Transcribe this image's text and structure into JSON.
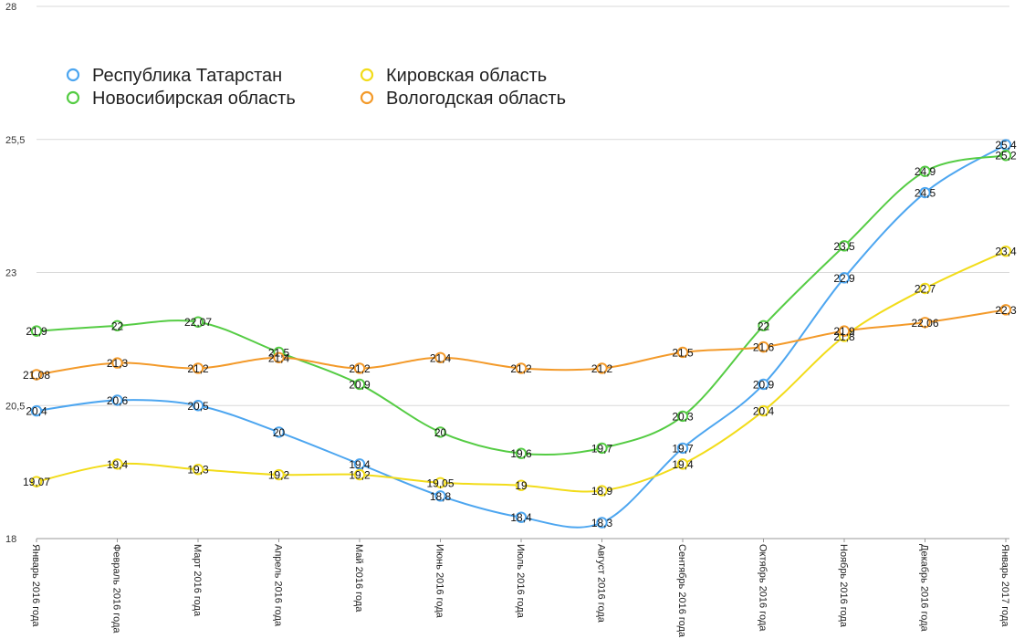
{
  "colors": {
    "tatarstan": "#4da6f0",
    "novosibirsk": "#55cc44",
    "kirov": "#f2dc1a",
    "vologda": "#f39a2a",
    "grid": "#d9d9d9",
    "axis": "#9a9a9a"
  },
  "chart_data": {
    "type": "line",
    "title": "",
    "xlabel": "",
    "ylabel": "",
    "ylim": [
      18,
      28
    ],
    "yticks": [
      "18",
      "20,5",
      "23",
      "25,5",
      "28"
    ],
    "ytick_values": [
      18,
      20.5,
      23,
      25.5,
      28
    ],
    "grid": true,
    "legend_position": "top-left",
    "categories": [
      "Январь 2016 года",
      "Февраль 2016 года",
      "Март 2016 года",
      "Апрель 2016 года",
      "Май 2016 года",
      "Июнь 2016 года",
      "Июль 2016 года",
      "Август 2016 года",
      "Сентябрь 2016 года",
      "Октябрь 2016 года",
      "Ноябрь 2016 года",
      "Декабрь 2016 года",
      "Январь 2017 года"
    ],
    "series": [
      {
        "name": "Республика Татарстан",
        "color_key": "tatarstan",
        "values": [
          20.4,
          20.6,
          20.5,
          20,
          19.4,
          18.8,
          18.4,
          18.3,
          19.7,
          20.9,
          22.9,
          24.5,
          25.4
        ],
        "labels": [
          "20,4",
          "20,6",
          "20,5",
          "20",
          "19,4",
          "18,8",
          "18,4",
          "18,3",
          "19,7",
          "20,9",
          "22,9",
          "24,5",
          "25,4"
        ]
      },
      {
        "name": "Новосибирская область",
        "color_key": "novosibirsk",
        "values": [
          21.9,
          22,
          22.07,
          21.5,
          20.9,
          20,
          19.6,
          19.7,
          20.3,
          22,
          23.5,
          24.9,
          25.2
        ],
        "labels": [
          "21,9",
          "22",
          "22,07",
          "21,5",
          "20,9",
          "20",
          "19,6",
          "19,7",
          "20,3",
          "22",
          "23,5",
          "24,9",
          "25,2"
        ]
      },
      {
        "name": "Кировская область",
        "color_key": "kirov",
        "values": [
          19.07,
          19.4,
          19.3,
          19.2,
          19.2,
          19.05,
          19,
          18.9,
          19.4,
          20.4,
          21.8,
          22.7,
          23.4
        ],
        "labels": [
          "19,07",
          "19,4",
          "19,3",
          "19,2",
          "19,2",
          "19,05",
          "19",
          "18,9",
          "19,4",
          "20,4",
          "21,8",
          "22,7",
          "23,4"
        ]
      },
      {
        "name": "Вологодская область",
        "color_key": "vologda",
        "values": [
          21.08,
          21.3,
          21.2,
          21.4,
          21.2,
          21.4,
          21.2,
          21.2,
          21.5,
          21.6,
          21.9,
          22.06,
          22.3
        ],
        "labels": [
          "21,08",
          "21,3",
          "21,2",
          "21,4",
          "21,2",
          "21,4",
          "21,2",
          "21,2",
          "21,5",
          "21,6",
          "21,9",
          "22,06",
          "22,3"
        ]
      }
    ]
  }
}
